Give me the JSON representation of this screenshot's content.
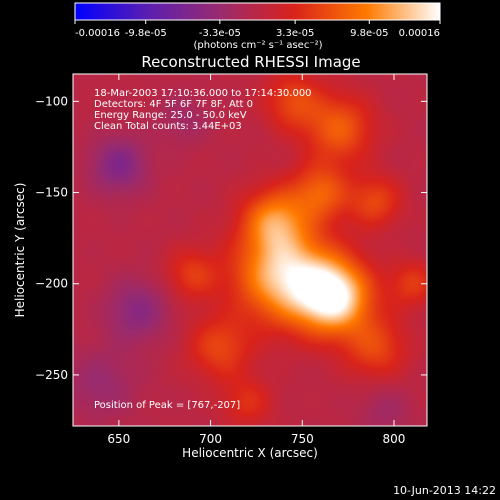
{
  "colorbar": {
    "tick_labels": [
      "-0.00016",
      "-9.8e-05",
      "-3.3e-05",
      "3.3e-05",
      "9.8e-05",
      "0.00016"
    ],
    "tick_values": [
      -0.00016,
      -9.8e-05,
      -3.3e-05,
      3.3e-05,
      9.8e-05,
      0.00016
    ],
    "range": [
      -0.00016,
      0.00016
    ],
    "unit_label": "(photons cm⁻² s⁻¹ asec⁻²)",
    "colors": [
      "#0000ff",
      "#5b1fb0",
      "#9a2b6e",
      "#d9231b",
      "#ff7a00",
      "#ffffff"
    ]
  },
  "chart_data": {
    "type": "heatmap",
    "title": "Reconstructed RHESSI Image",
    "xlabel": "Heliocentric X (arcsec)",
    "ylabel": "Heliocentric Y (arcsec)",
    "xlim": [
      625,
      818
    ],
    "ylim": [
      -278,
      -85
    ],
    "x_ticks": [
      650,
      700,
      750,
      800
    ],
    "y_ticks": [
      -100,
      -150,
      -200,
      -250
    ],
    "x_tick_labels": [
      "650",
      "700",
      "750",
      "800"
    ],
    "y_tick_labels": [
      "−100",
      "−150",
      "−200",
      "−250"
    ],
    "annotations": [
      "18-Mar-2003 17:10:36.000 to 17:14:30.000",
      "Detectors: 4F 5F 6F 7F 8F, Att 0",
      "Energy Range: 25.0 - 50.0 keV",
      "Clean     Total counts: 3.44E+03"
    ],
    "peak_label": "Position of Peak = [767,-207]",
    "peak": {
      "x": 767,
      "y": -207
    },
    "intensity_sources": [
      {
        "x": 767,
        "y": -207,
        "amp": 1.0,
        "sigma": 14
      },
      {
        "x": 740,
        "y": -195,
        "amp": 0.85,
        "sigma": 18
      },
      {
        "x": 735,
        "y": -165,
        "amp": 0.55,
        "sigma": 12
      },
      {
        "x": 760,
        "y": -150,
        "amp": 0.45,
        "sigma": 11
      },
      {
        "x": 790,
        "y": -155,
        "amp": 0.35,
        "sigma": 10
      },
      {
        "x": 770,
        "y": -115,
        "amp": 0.45,
        "sigma": 13
      },
      {
        "x": 745,
        "y": -100,
        "amp": 0.35,
        "sigma": 11
      },
      {
        "x": 705,
        "y": -235,
        "amp": 0.35,
        "sigma": 12
      },
      {
        "x": 720,
        "y": -265,
        "amp": 0.25,
        "sigma": 10
      },
      {
        "x": 790,
        "y": -235,
        "amp": 0.35,
        "sigma": 12
      },
      {
        "x": 690,
        "y": -195,
        "amp": 0.3,
        "sigma": 10
      },
      {
        "x": 810,
        "y": -200,
        "amp": 0.3,
        "sigma": 9
      },
      {
        "x": 650,
        "y": -135,
        "amp": -0.35,
        "sigma": 11
      },
      {
        "x": 660,
        "y": -215,
        "amp": -0.3,
        "sigma": 12
      },
      {
        "x": 640,
        "y": -255,
        "amp": -0.2,
        "sigma": 14
      },
      {
        "x": 685,
        "y": -110,
        "amp": -0.15,
        "sigma": 10
      },
      {
        "x": 795,
        "y": -270,
        "amp": -0.15,
        "sigma": 10
      }
    ]
  },
  "footer": {
    "timestamp": "10-Jun-2013 14:22"
  }
}
